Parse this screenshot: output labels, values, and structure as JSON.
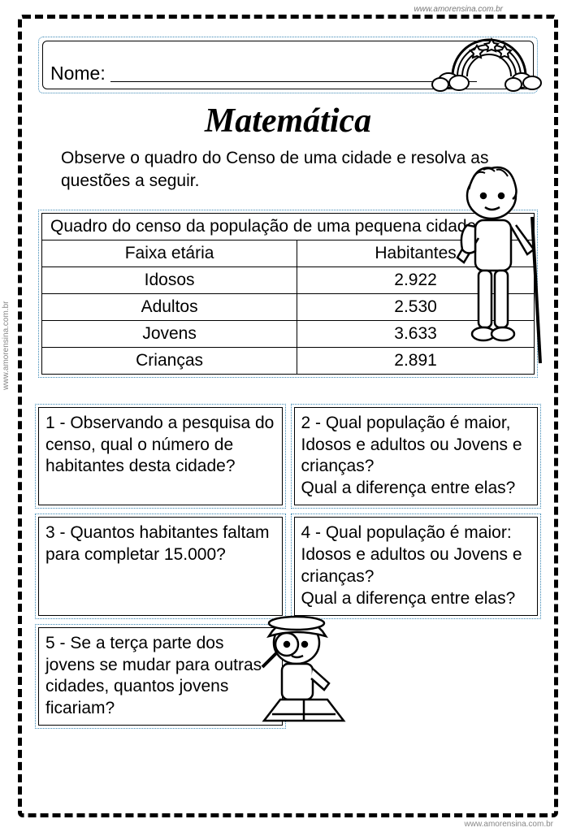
{
  "watermark": "www.amorensina.com.br",
  "name_label": "Nome:",
  "title": "Matemática",
  "instructions": "Observe o quadro do Censo de uma cidade e resolva as questões a seguir.",
  "table": {
    "caption": "Quadro do censo da população de uma pequena cidade",
    "columns": [
      "Faixa etária",
      "Habitantes"
    ],
    "rows": [
      [
        "Idosos",
        "2.922"
      ],
      [
        "Adultos",
        "2.530"
      ],
      [
        "Jovens",
        "3.633"
      ],
      [
        "Crianças",
        "2.891"
      ]
    ],
    "border_color": "#000000",
    "dotted_border_color": "#3b88b5",
    "font_size": 21
  },
  "questions": {
    "q1": "1 - Observando a pesquisa do censo, qual o número de habitantes desta cidade?",
    "q2": "2 - Qual população é maior, Idosos e adultos ou Jovens e crianças?\nQual a diferença entre elas?",
    "q3": "3 - Quantos habitantes faltam para completar 15.000?",
    "q4": "4 - Qual população é maior: Idosos e adultos ou Jovens e crianças?\nQual a diferença entre elas?",
    "q5": "5 - Se a terça parte  dos jovens se mudar para outras cidades, quantos jovens ficariam?"
  },
  "colors": {
    "page_bg": "#ffffff",
    "text": "#000000",
    "dashed_border": "#000000",
    "dotted_accent": "#3b88b5"
  }
}
